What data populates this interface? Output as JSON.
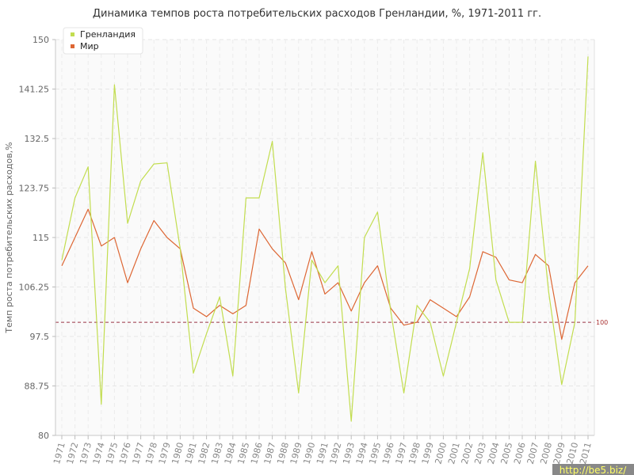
{
  "chart_data": {
    "type": "line",
    "title": "Динамика темпов роста потребительских расходов Гренландии, %, 1971-2011 гг.",
    "ylabel": "Темп роста потребительских расходов,%",
    "xlabel": "",
    "ylim": [
      80,
      150
    ],
    "yticks": [
      "80",
      "88.75",
      "97.5",
      "106.25",
      "115",
      "123.75",
      "132.5",
      "141.25",
      "150"
    ],
    "x": [
      "1971",
      "1972",
      "1973",
      "1974",
      "1975",
      "1976",
      "1977",
      "1978",
      "1979",
      "1980",
      "1981",
      "1982",
      "1983",
      "1984",
      "1985",
      "1986",
      "1987",
      "1988",
      "1989",
      "1990",
      "1991",
      "1992",
      "1993",
      "1994",
      "1995",
      "1996",
      "1997",
      "1998",
      "1999",
      "2000",
      "2001",
      "2002",
      "2003",
      "2004",
      "2005",
      "2006",
      "2007",
      "2008",
      "2009",
      "2010",
      "2011"
    ],
    "series": [
      {
        "name": "Гренландия",
        "color": "#c2dd4f",
        "values": [
          111,
          122,
          127.5,
          85.5,
          142,
          117.5,
          125,
          128,
          128.2,
          113,
          91,
          98,
          104.5,
          90.5,
          122,
          122,
          132,
          106,
          87.5,
          111,
          107,
          110,
          82.5,
          115,
          119.5,
          102,
          87.5,
          103,
          100,
          90.5,
          100,
          109.5,
          130,
          107.5,
          100,
          100,
          128.5,
          105.5,
          89,
          100,
          147
        ]
      },
      {
        "name": "Мир",
        "color": "#dd6633",
        "values": [
          110,
          115,
          120,
          113.5,
          115,
          107,
          113,
          118,
          115,
          113,
          102.5,
          101,
          103,
          101.5,
          103,
          116.5,
          113,
          110.5,
          104,
          112.5,
          105,
          107,
          102,
          107,
          110,
          102.5,
          99.5,
          100,
          104,
          102.5,
          101,
          104.5,
          112.5,
          111.5,
          107.5,
          107,
          112,
          110,
          97,
          107,
          110
        ]
      }
    ],
    "reference_line": {
      "value": 100,
      "label": "100",
      "color": "#993344"
    },
    "grid": true,
    "legend_position": "top-left"
  },
  "watermark": "http://be5.biz/"
}
